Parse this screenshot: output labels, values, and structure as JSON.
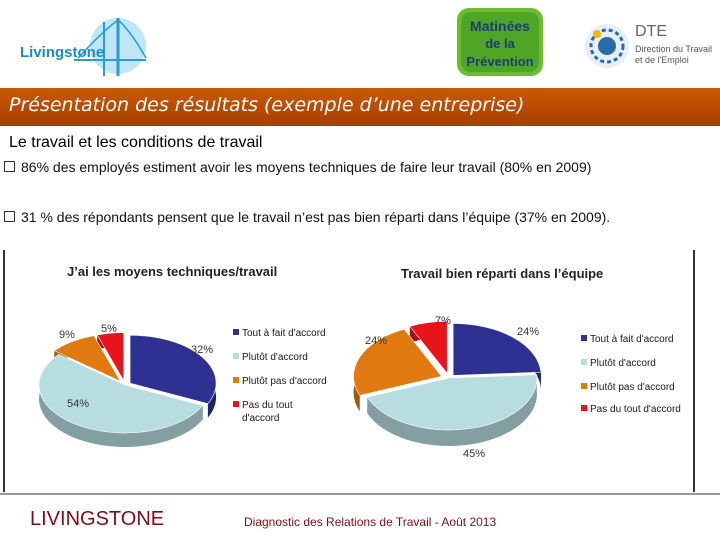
{
  "header": {
    "logo_livingstone": "Livingstone",
    "logo_matinees": [
      "Matinées",
      "de la",
      "Prévention"
    ],
    "logo_dte": {
      "acronym": "DTE",
      "line1": "Direction du Travail",
      "line2": "et de l'Emploi"
    }
  },
  "title": "Présentation des résultats (exemple d’une entreprise)",
  "section_heading": "Le travail et les conditions de travail",
  "bullets": [
    "86% des employés estiment avoir les moyens techniques de faire leur travail (80% en 2009)",
    "31 % des répondants pensent que le travail n’est pas bien réparti dans l’équipe (37% en 2009)."
  ],
  "chart_data": [
    {
      "type": "pie",
      "title": "J’ai les moyens techniques/travail",
      "categories": [
        "Tout à fait d'accord",
        "Plutôt d'accord",
        "Plutôt pas d'accord",
        "Pas du tout d'accord"
      ],
      "values": [
        32,
        54,
        9,
        5
      ],
      "labels": [
        "32%",
        "54%",
        "9%",
        "5%"
      ],
      "colors": [
        "#2e3192",
        "#b7dde0",
        "#e07a10",
        "#e8141b"
      ],
      "legend_position": "right"
    },
    {
      "type": "pie",
      "title": "Travail bien réparti dans l’équipe",
      "categories": [
        "Tout à fait d'accord",
        "Plutôt d'accord",
        "Plutôt pas d'accord",
        "Pas du tout d'accord"
      ],
      "values": [
        24,
        45,
        24,
        7
      ],
      "labels": [
        "24%",
        "45%",
        "24%",
        "7%"
      ],
      "colors": [
        "#2e3192",
        "#b7dde0",
        "#e07a10",
        "#e8141b"
      ],
      "legend_position": "right"
    }
  ],
  "footer": {
    "name": "LIVINGSTONE",
    "note": "Diagnostic des Relations de Travail - Août  2013"
  }
}
